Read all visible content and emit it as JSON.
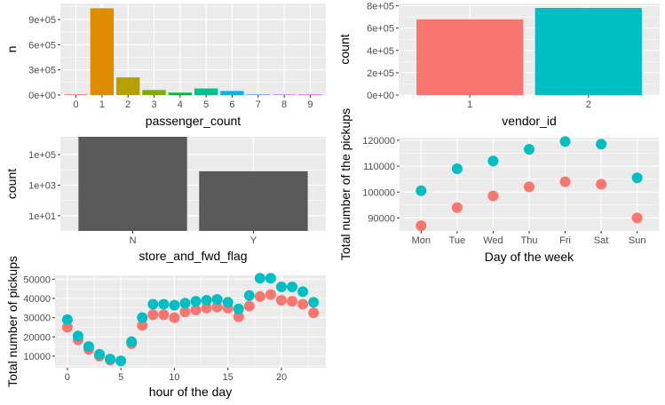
{
  "theme": {
    "panel_bg": "#ebebeb",
    "grid_major": "#ffffff",
    "tick_text": "#4d4d4d",
    "bar_dark": "#595959",
    "vendor_colors": [
      "#f8766d",
      "#00bfc4"
    ],
    "passenger_colors": [
      "#f8766d",
      "#de8c00",
      "#b79f00",
      "#7cae00",
      "#00ba38",
      "#00c08b",
      "#00b4f0",
      "#619cff",
      "#c77cff",
      "#f564e3"
    ]
  },
  "chart_data": [
    {
      "id": "passenger",
      "type": "bar",
      "xlabel": "passenger_count",
      "ylabel": "n",
      "categories": [
        "0",
        "1",
        "2",
        "3",
        "4",
        "5",
        "6",
        "7",
        "8",
        "9"
      ],
      "values": [
        60,
        1033540,
        210318,
        59896,
        28404,
        78088,
        48333,
        3,
        1,
        1
      ],
      "ylim": [
        0,
        1090000
      ],
      "yticks": [
        {
          "v": 0,
          "label": "0e+00"
        },
        {
          "v": 300000,
          "label": "3e+05"
        },
        {
          "v": 600000,
          "label": "6e+05"
        },
        {
          "v": 900000,
          "label": "9e+05"
        }
      ]
    },
    {
      "id": "vendor",
      "type": "bar",
      "xlabel": "vendor_id",
      "ylabel": "count",
      "categories": [
        "1",
        "2"
      ],
      "values": [
        678342,
        780302
      ],
      "ylim": [
        0,
        820000
      ],
      "yticks": [
        {
          "v": 0,
          "label": "0e+00"
        },
        {
          "v": 200000,
          "label": "2e+05"
        },
        {
          "v": 400000,
          "label": "4e+05"
        },
        {
          "v": 600000,
          "label": "6e+05"
        },
        {
          "v": 800000,
          "label": "8e+05"
        }
      ]
    },
    {
      "id": "store",
      "type": "bar",
      "scale": "log10",
      "xlabel": "store_and_fwd_flag",
      "ylabel": "count",
      "categories": [
        "N",
        "Y"
      ],
      "values": [
        1450000,
        8045
      ],
      "ylim": [
        1,
        1450000
      ],
      "yticks": [
        {
          "v": 10,
          "label": "1e+01"
        },
        {
          "v": 1000,
          "label": "1e+03"
        },
        {
          "v": 100000,
          "label": "1e+05"
        }
      ]
    },
    {
      "id": "weekday",
      "type": "scatter",
      "xlabel": "Day of the week",
      "ylabel": "Total number of the pickups",
      "categories": [
        "Mon",
        "Tue",
        "Wed",
        "Thu",
        "Fri",
        "Sat",
        "Sun"
      ],
      "series": [
        {
          "values": [
            87000,
            94000,
            98500,
            102000,
            104000,
            103000,
            90000
          ]
        },
        {
          "values": [
            100500,
            109000,
            112000,
            116500,
            119500,
            118500,
            105500
          ]
        }
      ],
      "ylim": [
        85000,
        121000
      ],
      "yticks": [
        {
          "v": 90000,
          "label": "90000"
        },
        {
          "v": 100000,
          "label": "100000"
        },
        {
          "v": 110000,
          "label": "110000"
        },
        {
          "v": 120000,
          "label": "120000"
        }
      ]
    },
    {
      "id": "hour",
      "type": "scatter",
      "xlabel": "hour of the day",
      "ylabel": "Total number of pickups",
      "x": [
        0,
        1,
        2,
        3,
        4,
        5,
        6,
        7,
        8,
        9,
        10,
        11,
        12,
        13,
        14,
        15,
        16,
        17,
        18,
        19,
        20,
        21,
        22,
        23
      ],
      "series": [
        {
          "values": [
            25000,
            18500,
            13500,
            10000,
            8000,
            7500,
            16500,
            26000,
            31500,
            31500,
            30000,
            33000,
            34000,
            35000,
            35500,
            35000,
            30500,
            36000,
            41000,
            42000,
            39000,
            38500,
            37000,
            32500
          ]
        },
        {
          "values": [
            29000,
            20500,
            15000,
            11000,
            8500,
            7500,
            17500,
            30000,
            37000,
            37000,
            36500,
            37500,
            38500,
            39000,
            39500,
            38000,
            34500,
            41500,
            50500,
            50500,
            46000,
            46000,
            43500,
            38000
          ]
        }
      ],
      "xlim": [
        -1.15,
        24.15
      ],
      "ylim": [
        4000,
        52000
      ],
      "xticks": [
        {
          "v": 0,
          "label": "0"
        },
        {
          "v": 5,
          "label": "5"
        },
        {
          "v": 10,
          "label": "10"
        },
        {
          "v": 15,
          "label": "15"
        },
        {
          "v": 20,
          "label": "20"
        }
      ],
      "yticks": [
        {
          "v": 10000,
          "label": "10000"
        },
        {
          "v": 20000,
          "label": "20000"
        },
        {
          "v": 30000,
          "label": "30000"
        },
        {
          "v": 40000,
          "label": "40000"
        },
        {
          "v": 50000,
          "label": "50000"
        }
      ]
    }
  ]
}
